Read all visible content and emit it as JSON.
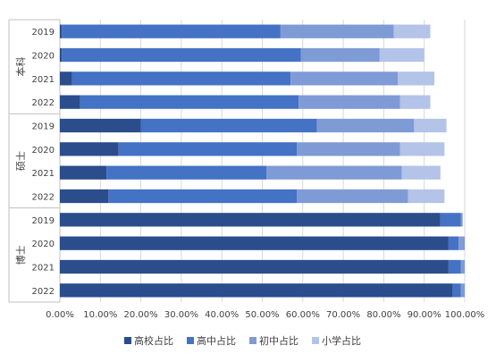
{
  "chart_data": {
    "type": "bar",
    "orientation": "horizontal",
    "stacked": true,
    "groups": [
      {
        "name": "本科",
        "categories": [
          "2019",
          "2020",
          "2021",
          "2022"
        ],
        "series": [
          {
            "name": "高校占比",
            "values": [
              0.5,
              0.5,
              3.0,
              5.0
            ]
          },
          {
            "name": "高中占比",
            "values": [
              54.0,
              59.0,
              54.0,
              54.0
            ]
          },
          {
            "name": "初中占比",
            "values": [
              28.0,
              19.5,
              26.5,
              25.0
            ]
          },
          {
            "name": "小学占比",
            "values": [
              9.0,
              11.0,
              9.0,
              7.5
            ]
          }
        ]
      },
      {
        "name": "硕士",
        "categories": [
          "2019",
          "2020",
          "2021",
          "2022"
        ],
        "series": [
          {
            "name": "高校占比",
            "values": [
              20.0,
              14.5,
              11.5,
              12.0
            ]
          },
          {
            "name": "高中占比",
            "values": [
              43.5,
              44.0,
              39.5,
              46.5
            ]
          },
          {
            "name": "初中占比",
            "values": [
              24.0,
              25.5,
              33.5,
              27.5
            ]
          },
          {
            "name": "小学占比",
            "values": [
              8.0,
              11.0,
              9.5,
              9.0
            ]
          }
        ]
      },
      {
        "name": "博士",
        "categories": [
          "2019",
          "2020",
          "2021",
          "2022"
        ],
        "series": [
          {
            "name": "高校占比",
            "values": [
              94.0,
              96.0,
              96.0,
              97.0
            ]
          },
          {
            "name": "高中占比",
            "values": [
              5.0,
              2.5,
              3.0,
              2.0
            ]
          },
          {
            "name": "初中占比",
            "values": [
              0.5,
              1.5,
              1.0,
              1.0
            ]
          },
          {
            "name": "小学占比",
            "values": [
              0.0,
              0.0,
              0.0,
              0.0
            ]
          }
        ]
      }
    ],
    "series_names": [
      "高校占比",
      "高中占比",
      "初中占比",
      "小学占比"
    ],
    "colors": [
      "#2b4d8c",
      "#4472c4",
      "#7f9bd6",
      "#b4c3e8"
    ],
    "xlim": [
      0,
      100
    ],
    "x_ticks": [
      "0.00%",
      "10.00%",
      "20.00%",
      "30.00%",
      "40.00%",
      "50.00%",
      "60.00%",
      "70.00%",
      "80.00%",
      "90.00%",
      "100.00%"
    ],
    "grid": true,
    "legend": "bottom"
  }
}
